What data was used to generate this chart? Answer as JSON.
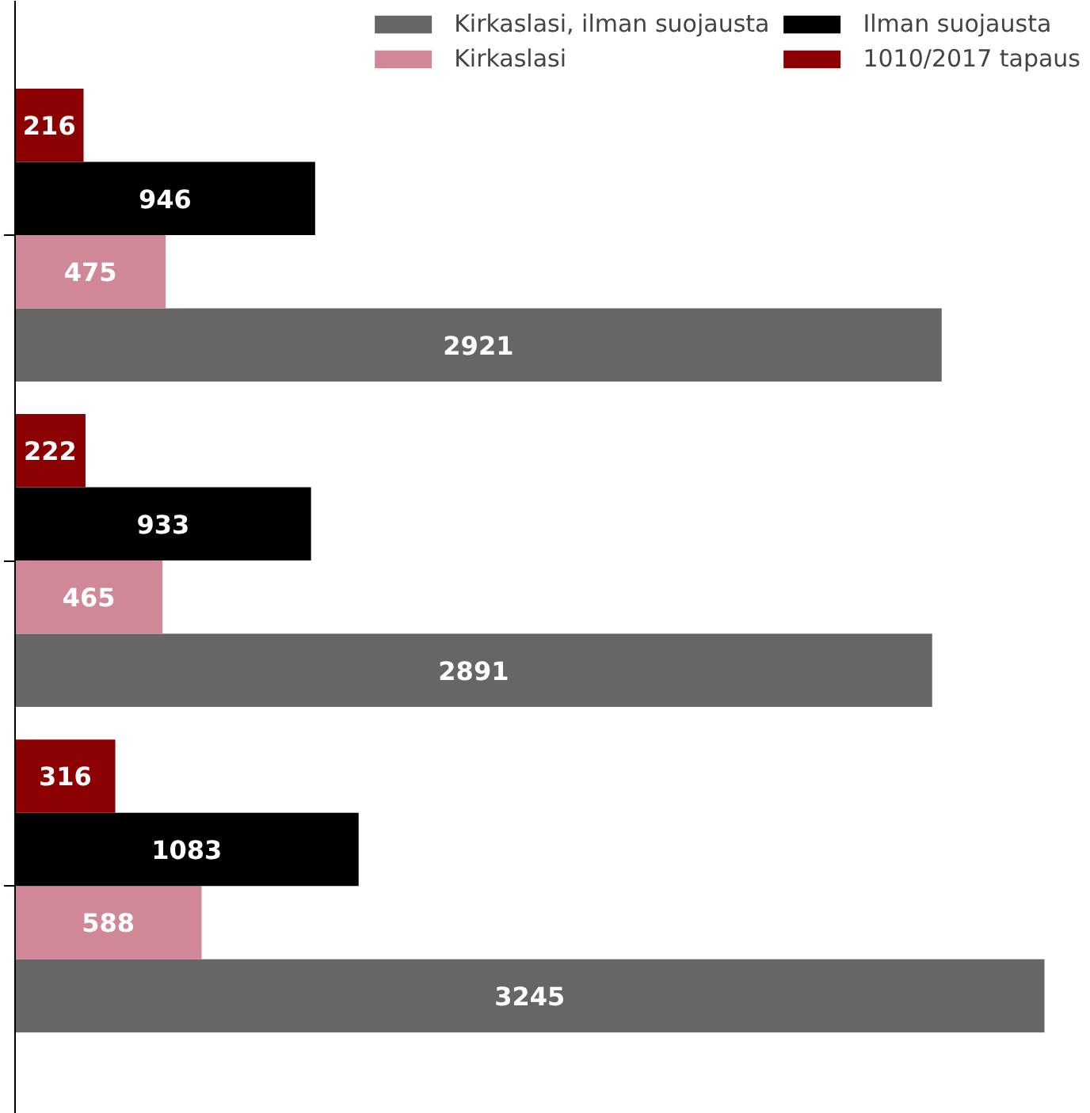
{
  "chart_data": {
    "type": "bar",
    "orientation": "horizontal",
    "categories": [
      null,
      null,
      null
    ],
    "series": [
      {
        "name": "Kirkaslasi, ilman suojausta",
        "color": "#666666",
        "values": [
          2921,
          2891,
          3245
        ]
      },
      {
        "name": "Kirkaslasi",
        "color": "#d08898",
        "values": [
          475,
          465,
          588
        ]
      },
      {
        "name": "Ilman suojausta",
        "color": "#000000",
        "values": [
          946,
          933,
          1083
        ]
      },
      {
        "name": "1010/2017 tapaus",
        "color": "#8b0000",
        "values": [
          216,
          222,
          316
        ]
      }
    ],
    "data_labels": true,
    "legend": "top right",
    "grid": false
  }
}
